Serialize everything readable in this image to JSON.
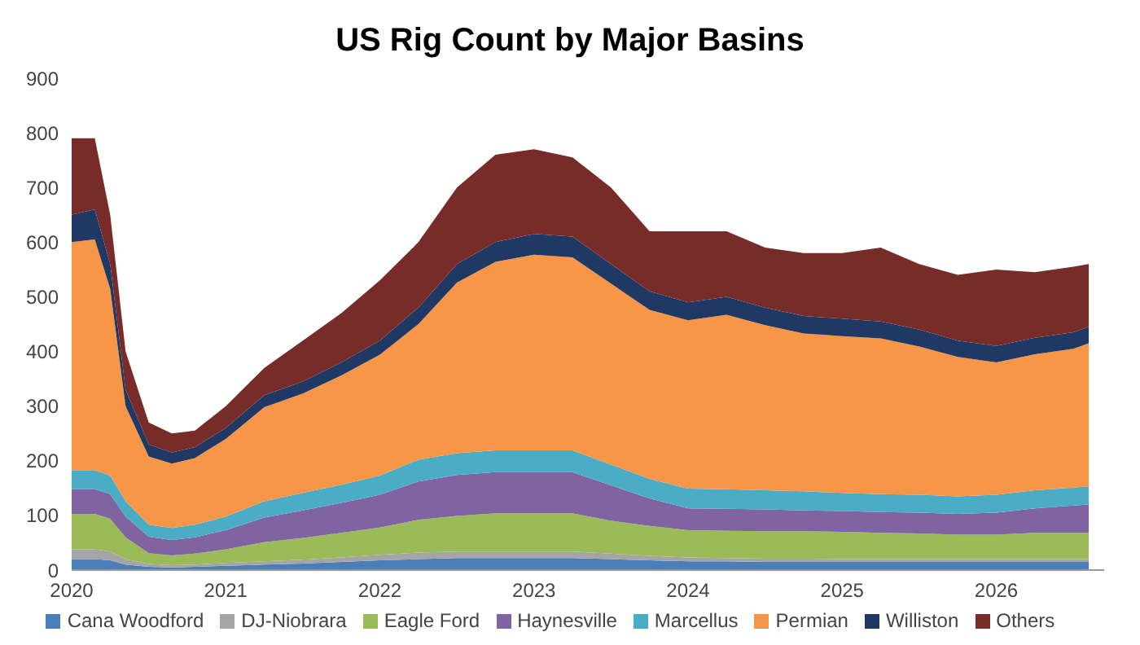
{
  "chart_data": {
    "type": "area",
    "title": "US Rig Count by Major Basins",
    "stacked": true,
    "legend": "bottom",
    "grid": false,
    "x": [
      2020,
      2020.15,
      2020.25,
      2020.35,
      2020.5,
      2020.65,
      2020.8,
      2021,
      2021.25,
      2021.5,
      2021.75,
      2022,
      2022.25,
      2022.5,
      2022.75,
      2023,
      2023.25,
      2023.5,
      2023.75,
      2024,
      2024.25,
      2024.5,
      2024.75,
      2025,
      2025.25,
      2025.5,
      2025.75,
      2026,
      2026.25,
      2026.5,
      2026.6
    ],
    "xlim": [
      2020,
      2026.7
    ],
    "xticks": [
      2020,
      2021,
      2022,
      2023,
      2024,
      2025,
      2026
    ],
    "ylim": [
      0,
      900
    ],
    "yticks": [
      0,
      100,
      200,
      300,
      400,
      500,
      600,
      700,
      800,
      900
    ],
    "series": [
      {
        "name": "Cana Woodford",
        "color": "#4a7ebb",
        "values": [
          20,
          20,
          18,
          10,
          6,
          5,
          6,
          8,
          10,
          12,
          15,
          18,
          20,
          22,
          22,
          22,
          22,
          20,
          18,
          16,
          16,
          15,
          15,
          15,
          15,
          15,
          15,
          15,
          15,
          15,
          15
        ]
      },
      {
        "name": "DJ-Niobrara",
        "color": "#a5a5a5",
        "values": [
          18,
          18,
          16,
          10,
          5,
          4,
          4,
          5,
          6,
          7,
          8,
          10,
          12,
          12,
          12,
          12,
          12,
          10,
          8,
          7,
          6,
          6,
          6,
          5,
          5,
          5,
          5,
          5,
          5,
          5,
          5
        ]
      },
      {
        "name": "Eagle Ford",
        "color": "#9bbb59",
        "values": [
          65,
          65,
          60,
          40,
          20,
          18,
          20,
          25,
          35,
          40,
          45,
          50,
          60,
          65,
          70,
          70,
          70,
          60,
          55,
          50,
          50,
          50,
          50,
          50,
          48,
          47,
          45,
          45,
          48,
          48,
          48
        ]
      },
      {
        "name": "Haynesville",
        "color": "#8064a2",
        "values": [
          45,
          45,
          45,
          38,
          30,
          28,
          30,
          35,
          45,
          50,
          55,
          60,
          70,
          75,
          75,
          75,
          75,
          65,
          50,
          40,
          40,
          40,
          38,
          38,
          38,
          38,
          38,
          40,
          45,
          50,
          52
        ]
      },
      {
        "name": "Marcellus",
        "color": "#4bacc6",
        "values": [
          35,
          35,
          34,
          28,
          22,
          22,
          23,
          25,
          30,
          32,
          33,
          35,
          40,
          40,
          40,
          40,
          40,
          38,
          36,
          36,
          36,
          35,
          35,
          33,
          33,
          33,
          32,
          33,
          33,
          33,
          33
        ]
      },
      {
        "name": "Permian",
        "color": "#f79646",
        "values": [
          417,
          422,
          342,
          174,
          125,
          118,
          122,
          142,
          172,
          182,
          200,
          221,
          248,
          312,
          345,
          358,
          353,
          331,
          309,
          308,
          319,
          302,
          289,
          287,
          285,
          271,
          255,
          242,
          249,
          254,
          262
        ]
      },
      {
        "name": "Williston",
        "color": "#1f3864",
        "values": [
          50,
          55,
          45,
          30,
          22,
          20,
          20,
          20,
          22,
          22,
          24,
          26,
          30,
          34,
          36,
          38,
          38,
          36,
          34,
          33,
          33,
          32,
          32,
          32,
          31,
          31,
          30,
          30,
          30,
          30,
          30
        ]
      },
      {
        "name": "Others",
        "color": "#772c2a",
        "values": [
          140,
          130,
          90,
          70,
          40,
          35,
          30,
          40,
          50,
          75,
          90,
          110,
          120,
          140,
          160,
          155,
          145,
          140,
          110,
          130,
          120,
          110,
          115,
          120,
          135,
          120,
          120,
          140,
          120,
          120,
          115
        ]
      }
    ]
  }
}
